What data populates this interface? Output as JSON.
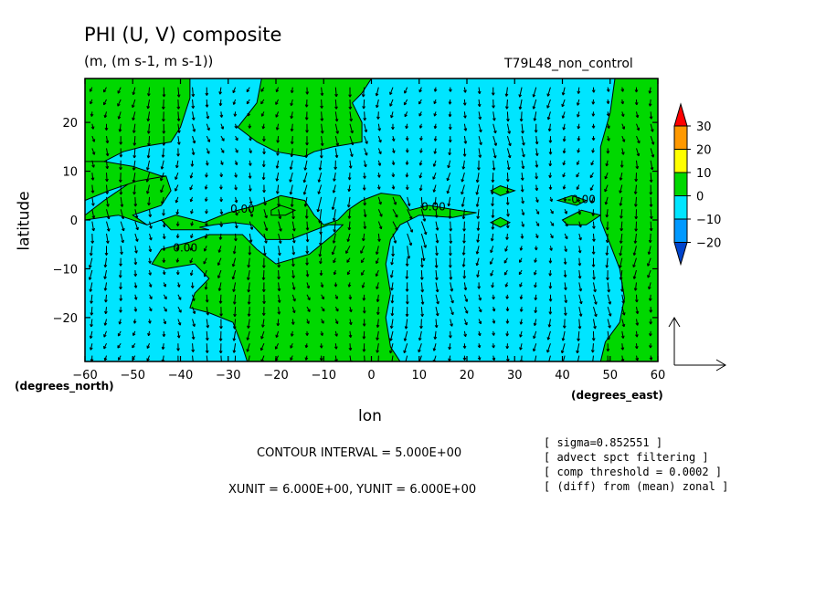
{
  "title": "PHI (U, V) composite",
  "units_line": "(m, (m s-1, m s-1))",
  "run_name": "T79L48_non_control",
  "ylabel": "latitude",
  "xlabel": "lon",
  "y_unit_label": "(degrees_north)",
  "x_unit_label": "(degrees_east)",
  "contour_interval": "CONTOUR INTERVAL = 5.000E+00",
  "vector_units": "XUNIT = 6.000E+00, YUNIT = 6.000E+00",
  "notes": [
    "[ sigma=0.852551 ]",
    "[ advect spct filtering ]",
    "[ comp threshold = 0.0002 ]",
    "[ (diff) from (mean) zonal ]"
  ],
  "contour_labels": [
    "0.00",
    "0.00",
    "0.00",
    "-0.00"
  ],
  "colors": {
    "neg_10_0": "#00e5ff",
    "pos_0_10": "#00d800",
    "range_10_20": "#ffff00",
    "range_20_30": "#ff9900",
    "above_30": "#ff0000",
    "range_-20_-10": "#0099ff",
    "below_-20": "#0044cc"
  },
  "chart_data": {
    "type": "heatmap",
    "subtype": "filled contour with vector arrows",
    "xlim": [
      -60,
      60
    ],
    "ylim": [
      -29,
      29
    ],
    "x_ticks": [
      -60,
      -50,
      -40,
      -30,
      -20,
      -10,
      0,
      10,
      20,
      30,
      40,
      50,
      60
    ],
    "y_ticks": [
      -20,
      -10,
      0,
      10,
      20
    ],
    "colorbar": {
      "levels": [
        -20,
        -10,
        0,
        10,
        20,
        30
      ],
      "labels": [
        "30",
        "20",
        "10",
        "0",
        "−10",
        "−20"
      ]
    },
    "contour_label_positions": [
      {
        "x": -27,
        "y": 1.5,
        "text": "0.00"
      },
      {
        "x": -39,
        "y": -6.5,
        "text": "0.00"
      },
      {
        "x": 13,
        "y": 2,
        "text": "0.00"
      },
      {
        "x": 44,
        "y": 3.5,
        "text": "-0.00"
      }
    ],
    "positive_regions": [
      [
        [
          -60,
          1
        ],
        [
          -56,
          4
        ],
        [
          -50,
          8
        ],
        [
          -43,
          9
        ],
        [
          -42,
          6
        ],
        [
          -44,
          3
        ],
        [
          -50,
          1
        ],
        [
          -47,
          -1
        ],
        [
          -41,
          1
        ],
        [
          -35,
          -0.5
        ],
        [
          -30,
          1.5
        ],
        [
          -24,
          3
        ],
        [
          -19,
          5
        ],
        [
          -14,
          4
        ],
        [
          -12,
          1
        ],
        [
          -10,
          -1
        ],
        [
          -7,
          0
        ],
        [
          -5,
          2
        ],
        [
          -2,
          4
        ],
        [
          2,
          5.5
        ],
        [
          6,
          5
        ],
        [
          8,
          2
        ],
        [
          12,
          3
        ],
        [
          18,
          2
        ],
        [
          22,
          1.5
        ],
        [
          17,
          0.5
        ],
        [
          10,
          1
        ],
        [
          6,
          -1
        ],
        [
          4,
          -4
        ],
        [
          3,
          -9
        ],
        [
          4,
          -15
        ],
        [
          3,
          -20
        ],
        [
          4,
          -26
        ],
        [
          6,
          -29
        ],
        [
          -26,
          -29
        ],
        [
          -27,
          -26
        ],
        [
          -29,
          -21
        ],
        [
          -34,
          -19
        ],
        [
          -38,
          -18
        ],
        [
          -37,
          -15
        ],
        [
          -34,
          -12
        ],
        [
          -37,
          -9
        ],
        [
          -43,
          -10
        ],
        [
          -46,
          -9
        ],
        [
          -44,
          -6
        ],
        [
          -38,
          -4.5
        ],
        [
          -34,
          -3
        ],
        [
          -27,
          -3
        ],
        [
          -24,
          -6
        ],
        [
          -20,
          -9
        ],
        [
          -13,
          -7
        ],
        [
          -8,
          -3
        ],
        [
          -6,
          -1
        ],
        [
          -9,
          -1
        ],
        [
          -17,
          -4
        ],
        [
          -22,
          -4
        ],
        [
          -25,
          -1
        ],
        [
          -29,
          -0.5
        ],
        [
          -33,
          -1
        ],
        [
          -36,
          -1.5
        ],
        [
          -34,
          -2
        ],
        [
          -42,
          -2
        ],
        [
          -44,
          0
        ],
        [
          -47,
          -1
        ],
        [
          -53,
          1
        ],
        [
          -60,
          0
        ]
      ],
      [
        [
          -60,
          29
        ],
        [
          -60,
          29
        ],
        [
          -38,
          29
        ],
        [
          -38,
          25
        ],
        [
          -40,
          19
        ],
        [
          -42,
          16
        ],
        [
          -48,
          15
        ],
        [
          -52,
          14
        ],
        [
          -56,
          12
        ],
        [
          -60,
          10
        ]
      ],
      [
        [
          -38,
          29
        ],
        [
          -23,
          29
        ],
        [
          -24,
          24
        ],
        [
          -28,
          19
        ],
        [
          -24,
          16
        ],
        [
          -20,
          14
        ],
        [
          -14,
          13
        ],
        [
          -12,
          14
        ],
        [
          -8,
          15
        ],
        [
          -2,
          16
        ],
        [
          -2,
          20
        ],
        [
          -4,
          24
        ],
        [
          -2,
          26
        ],
        [
          0,
          29
        ]
      ],
      [
        [
          -60,
          12
        ],
        [
          -56,
          12
        ],
        [
          -50,
          11
        ],
        [
          -44,
          9
        ],
        [
          -43,
          9
        ],
        [
          -49,
          8
        ],
        [
          -55,
          6
        ],
        [
          -60,
          4
        ]
      ],
      [
        [
          -21,
          2
        ],
        [
          -19,
          3
        ],
        [
          -16,
          2
        ],
        [
          -18,
          1
        ],
        [
          -21,
          1
        ]
      ],
      [
        [
          25,
          6
        ],
        [
          27,
          7
        ],
        [
          30,
          6
        ],
        [
          27,
          5
        ]
      ],
      [
        [
          25,
          -0.5
        ],
        [
          27,
          0.5
        ],
        [
          29,
          -0.5
        ],
        [
          27,
          -1.5
        ]
      ],
      [
        [
          39,
          4
        ],
        [
          42,
          5
        ],
        [
          45,
          4
        ],
        [
          43,
          3
        ]
      ],
      [
        [
          40,
          0
        ],
        [
          44,
          2
        ],
        [
          48,
          1
        ],
        [
          45,
          -1
        ],
        [
          41,
          -1
        ]
      ],
      [
        [
          51,
          29
        ],
        [
          60,
          29
        ],
        [
          60,
          -29
        ],
        [
          48,
          -29
        ],
        [
          49,
          -25
        ],
        [
          52,
          -21
        ],
        [
          53,
          -16
        ],
        [
          52,
          -10
        ],
        [
          50,
          -5
        ],
        [
          48,
          0
        ],
        [
          48,
          7
        ],
        [
          48,
          15
        ],
        [
          50,
          22
        ]
      ]
    ],
    "vector_grid": {
      "x_step": 3,
      "y_step": 2.5,
      "max_len_deg": 2.2
    }
  }
}
